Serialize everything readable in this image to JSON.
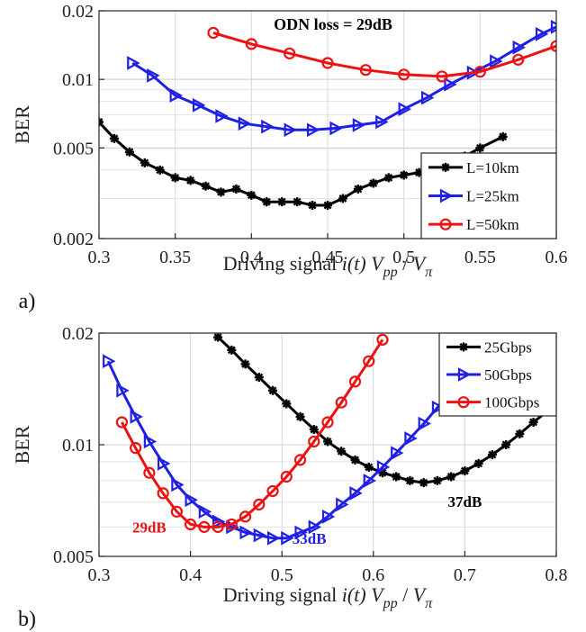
{
  "chart_data": [
    {
      "panel": "a)",
      "type": "line",
      "title": "ODN loss = 29dB",
      "xlabel": {
        "prefix": "Driving signal ",
        "italic": "i(t)",
        "v": "V",
        "sub1": "pp",
        "slash": " / ",
        "v2": "V",
        "sub2": "π"
      },
      "ylabel": "BER",
      "yscale": "log",
      "xlim": [
        0.3,
        0.6
      ],
      "ylim": [
        0.002,
        0.02
      ],
      "xticks": [
        "0.3",
        "0.35",
        "0.4",
        "0.45",
        "0.5",
        "0.55",
        "0.6"
      ],
      "yticks": [
        {
          "v": 0.002,
          "label": "0.002"
        },
        {
          "v": 0.005,
          "label": "0.005"
        },
        {
          "v": 0.01,
          "label": "0.01"
        },
        {
          "v": 0.02,
          "label": "0.02"
        }
      ],
      "grid": true,
      "legend_position": "right",
      "series": [
        {
          "name": "L=10km",
          "color": "#000000",
          "marker": "star",
          "points": [
            [
              0.3,
              0.0065
            ],
            [
              0.31,
              0.0055
            ],
            [
              0.32,
              0.0048
            ],
            [
              0.33,
              0.0043
            ],
            [
              0.34,
              0.004
            ],
            [
              0.35,
              0.0037
            ],
            [
              0.36,
              0.0036
            ],
            [
              0.37,
              0.0034
            ],
            [
              0.38,
              0.0032
            ],
            [
              0.39,
              0.0033
            ],
            [
              0.4,
              0.0031
            ],
            [
              0.41,
              0.0029
            ],
            [
              0.42,
              0.0029
            ],
            [
              0.43,
              0.0029
            ],
            [
              0.44,
              0.0028
            ],
            [
              0.45,
              0.0028
            ],
            [
              0.46,
              0.003
            ],
            [
              0.47,
              0.0033
            ],
            [
              0.48,
              0.0035
            ],
            [
              0.49,
              0.0037
            ],
            [
              0.5,
              0.0038
            ],
            [
              0.51,
              0.0039
            ],
            [
              0.52,
              0.004
            ],
            [
              0.53,
              0.0042
            ],
            [
              0.54,
              0.0046
            ],
            [
              0.55,
              0.005
            ],
            [
              0.565,
              0.0056
            ]
          ]
        },
        {
          "name": "L=25km",
          "color": "#1f1fe6",
          "marker": "triangle-right",
          "points": [
            [
              0.322,
              0.0118
            ],
            [
              0.335,
              0.0104
            ],
            [
              0.35,
              0.0085
            ],
            [
              0.365,
              0.0077
            ],
            [
              0.38,
              0.0069
            ],
            [
              0.395,
              0.0064
            ],
            [
              0.41,
              0.0062
            ],
            [
              0.425,
              0.006
            ],
            [
              0.44,
              0.006
            ],
            [
              0.455,
              0.0061
            ],
            [
              0.47,
              0.0063
            ],
            [
              0.485,
              0.0065
            ],
            [
              0.5,
              0.0074
            ],
            [
              0.515,
              0.0083
            ],
            [
              0.53,
              0.0095
            ],
            [
              0.545,
              0.0107
            ],
            [
              0.56,
              0.012
            ],
            [
              0.575,
              0.0138
            ],
            [
              0.59,
              0.0158
            ],
            [
              0.6,
              0.017
            ]
          ]
        },
        {
          "name": "L=50km",
          "color": "#ee1111",
          "marker": "circle",
          "points": [
            [
              0.375,
              0.016
            ],
            [
              0.4,
              0.0143
            ],
            [
              0.425,
              0.013
            ],
            [
              0.45,
              0.0118
            ],
            [
              0.475,
              0.011
            ],
            [
              0.5,
              0.0105
            ],
            [
              0.525,
              0.0103
            ],
            [
              0.55,
              0.0108
            ],
            [
              0.575,
              0.0122
            ],
            [
              0.6,
              0.014
            ]
          ]
        }
      ]
    },
    {
      "panel": "b)",
      "type": "line",
      "title": "",
      "xlabel": {
        "prefix": "Driving signal ",
        "italic": "i(t)",
        "v": "V",
        "sub1": "pp",
        "slash": " / ",
        "v2": "V",
        "sub2": "π"
      },
      "ylabel": "BER",
      "yscale": "log",
      "xlim": [
        0.3,
        0.8
      ],
      "ylim": [
        0.005,
        0.02
      ],
      "xticks": [
        "0.3",
        "0.4",
        "0.5",
        "0.6",
        "0.7",
        "0.8"
      ],
      "yticks": [
        {
          "v": 0.005,
          "label": "0.005"
        },
        {
          "v": 0.01,
          "label": "0.01"
        },
        {
          "v": 0.02,
          "label": "0.02"
        }
      ],
      "grid": true,
      "legend_position": "top-right",
      "annotations": [
        {
          "text": "29dB",
          "color": "#ee1111",
          "x": 0.355,
          "y": 0.0058
        },
        {
          "text": "33dB",
          "color": "#1f1fe6",
          "x": 0.53,
          "y": 0.0054
        },
        {
          "text": "37dB",
          "color": "#000000",
          "x": 0.7,
          "y": 0.0068
        }
      ],
      "series": [
        {
          "name": "25Gbps",
          "color": "#000000",
          "marker": "star",
          "points": [
            [
              0.43,
              0.0195
            ],
            [
              0.445,
              0.018
            ],
            [
              0.46,
              0.0165
            ],
            [
              0.475,
              0.0152
            ],
            [
              0.49,
              0.014
            ],
            [
              0.505,
              0.0129
            ],
            [
              0.52,
              0.0119
            ],
            [
              0.535,
              0.011
            ],
            [
              0.55,
              0.0102
            ],
            [
              0.565,
              0.0096
            ],
            [
              0.58,
              0.0091
            ],
            [
              0.595,
              0.0087
            ],
            [
              0.61,
              0.0084
            ],
            [
              0.625,
              0.0082
            ],
            [
              0.64,
              0.008
            ],
            [
              0.655,
              0.0079
            ],
            [
              0.67,
              0.008
            ],
            [
              0.685,
              0.0082
            ],
            [
              0.7,
              0.0085
            ],
            [
              0.715,
              0.0089
            ],
            [
              0.73,
              0.0094
            ],
            [
              0.745,
              0.01
            ],
            [
              0.76,
              0.0107
            ],
            [
              0.775,
              0.0115
            ],
            [
              0.79,
              0.0123
            ],
            [
              0.8,
              0.0129
            ]
          ]
        },
        {
          "name": "50Gbps",
          "color": "#1f1fe6",
          "marker": "triangle-right",
          "points": [
            [
              0.31,
              0.0168
            ],
            [
              0.325,
              0.014
            ],
            [
              0.34,
              0.0119
            ],
            [
              0.355,
              0.0102
            ],
            [
              0.37,
              0.0089
            ],
            [
              0.385,
              0.0078
            ],
            [
              0.4,
              0.0071
            ],
            [
              0.415,
              0.0066
            ],
            [
              0.43,
              0.0062
            ],
            [
              0.445,
              0.006
            ],
            [
              0.46,
              0.0058
            ],
            [
              0.475,
              0.0057
            ],
            [
              0.49,
              0.0056
            ],
            [
              0.505,
              0.0056
            ],
            [
              0.52,
              0.0058
            ],
            [
              0.535,
              0.006
            ],
            [
              0.55,
              0.0064
            ],
            [
              0.565,
              0.0069
            ],
            [
              0.58,
              0.0074
            ],
            [
              0.595,
              0.008
            ],
            [
              0.61,
              0.0087
            ],
            [
              0.625,
              0.0095
            ],
            [
              0.64,
              0.0104
            ],
            [
              0.655,
              0.0114
            ],
            [
              0.67,
              0.0126
            ],
            [
              0.685,
              0.014
            ],
            [
              0.7,
              0.0156
            ],
            [
              0.715,
              0.0175
            ],
            [
              0.73,
              0.0196
            ]
          ]
        },
        {
          "name": "100Gbps",
          "color": "#ee1111",
          "marker": "circle",
          "points": [
            [
              0.325,
              0.0115
            ],
            [
              0.34,
              0.0098
            ],
            [
              0.355,
              0.0084
            ],
            [
              0.37,
              0.0074
            ],
            [
              0.385,
              0.0066
            ],
            [
              0.4,
              0.0061
            ],
            [
              0.415,
              0.006
            ],
            [
              0.43,
              0.006
            ],
            [
              0.445,
              0.0061
            ],
            [
              0.46,
              0.0064
            ],
            [
              0.475,
              0.0069
            ],
            [
              0.49,
              0.0075
            ],
            [
              0.505,
              0.0082
            ],
            [
              0.52,
              0.0091
            ],
            [
              0.535,
              0.0102
            ],
            [
              0.55,
              0.0115
            ],
            [
              0.565,
              0.013
            ],
            [
              0.58,
              0.0148
            ],
            [
              0.595,
              0.0168
            ],
            [
              0.61,
              0.0192
            ]
          ]
        }
      ]
    }
  ]
}
